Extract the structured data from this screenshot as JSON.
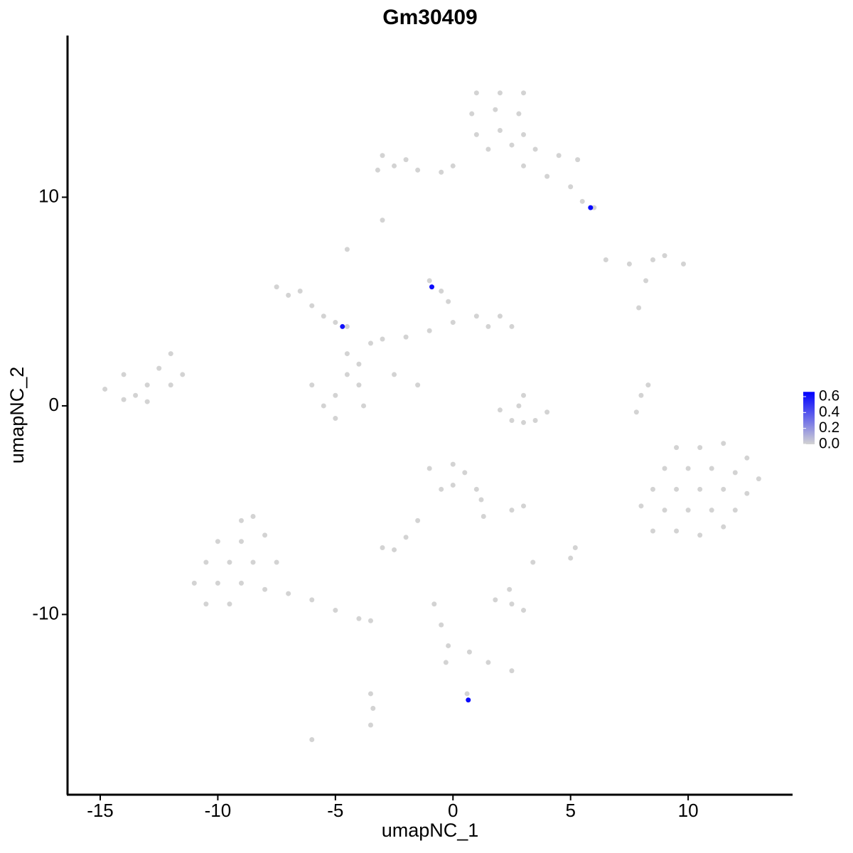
{
  "chart_data": {
    "type": "scatter",
    "title": "Gm30409",
    "x_label": "umapNC_1",
    "y_label": "umapNC_2",
    "xlim": [
      -16.39,
      14.44
    ],
    "ylim": [
      -18.64,
      17.75
    ],
    "xticks": [
      -15,
      -10,
      -5,
      0,
      5,
      10
    ],
    "yticks": [
      -10,
      0,
      10
    ],
    "low_color": "#d3d3d3",
    "high_color": "#0000ff",
    "color_range": [
      0,
      0.66
    ],
    "colorbar_ticks": [
      {
        "value": 0,
        "label": "0.0"
      },
      {
        "value": 0.2,
        "label": "0.2"
      },
      {
        "value": 0.4,
        "label": "0.4"
      },
      {
        "value": 0.6,
        "label": "0.6"
      }
    ],
    "points": [
      [
        1,
        15,
        0
      ],
      [
        2,
        15,
        0
      ],
      [
        3,
        15,
        0
      ],
      [
        0.8,
        14,
        0
      ],
      [
        1.8,
        14.2,
        0
      ],
      [
        2.8,
        14,
        0
      ],
      [
        1,
        13,
        0
      ],
      [
        2,
        13.2,
        0
      ],
      [
        3,
        13,
        0
      ],
      [
        1.5,
        12.3,
        0
      ],
      [
        2.5,
        12.5,
        0
      ],
      [
        3.5,
        12.3,
        0
      ],
      [
        4.5,
        12,
        0
      ],
      [
        5.3,
        11.8,
        0
      ],
      [
        4,
        11,
        0
      ],
      [
        5,
        10.5,
        0
      ],
      [
        5.5,
        9.8,
        0
      ],
      [
        6,
        9.5,
        0
      ],
      [
        3,
        11.5,
        0
      ],
      [
        0,
        11.5,
        0
      ],
      [
        -0.5,
        11.2,
        0
      ],
      [
        -3,
        12,
        0
      ],
      [
        -2.5,
        11.5,
        0
      ],
      [
        -2,
        11.8,
        0
      ],
      [
        -1.5,
        11.3,
        0
      ],
      [
        -3.2,
        11.3,
        0
      ],
      [
        -3,
        8.9,
        0
      ],
      [
        -4.5,
        7.5,
        0
      ],
      [
        6.5,
        7,
        0
      ],
      [
        7.5,
        6.8,
        0
      ],
      [
        8.5,
        7,
        0
      ],
      [
        9,
        7.2,
        0
      ],
      [
        9.8,
        6.8,
        0
      ],
      [
        8.2,
        6,
        0
      ],
      [
        7.9,
        4.7,
        0
      ],
      [
        -7.5,
        5.7,
        0
      ],
      [
        -7,
        5.3,
        0
      ],
      [
        -6.5,
        5.5,
        0
      ],
      [
        -6,
        4.8,
        0
      ],
      [
        -5.5,
        4.3,
        0
      ],
      [
        -5,
        4,
        0
      ],
      [
        -4.5,
        3.8,
        0
      ],
      [
        -6,
        1,
        0
      ],
      [
        -5.5,
        0,
        0
      ],
      [
        -5,
        0.5,
        0
      ],
      [
        -4.5,
        1.5,
        0
      ],
      [
        -4,
        1,
        0
      ],
      [
        -3.8,
        0,
        0
      ],
      [
        -5,
        -0.6,
        0
      ],
      [
        -4.5,
        2.5,
        0
      ],
      [
        -4,
        2,
        0
      ],
      [
        -3.5,
        3,
        0
      ],
      [
        -3,
        3.2,
        0
      ],
      [
        -2,
        3.3,
        0
      ],
      [
        -1,
        3.6,
        0
      ],
      [
        0,
        4,
        0
      ],
      [
        1,
        4.3,
        0
      ],
      [
        2,
        4.3,
        0
      ],
      [
        2.5,
        3.8,
        0
      ],
      [
        1.5,
        3.8,
        0
      ],
      [
        -0.5,
        5.5,
        0
      ],
      [
        -1,
        6,
        0
      ],
      [
        -0.2,
        5,
        0
      ],
      [
        -2.5,
        1.5,
        0
      ],
      [
        -1.5,
        1,
        0
      ],
      [
        -14.8,
        0.8,
        0
      ],
      [
        -14,
        1.5,
        0
      ],
      [
        -13.5,
        0.5,
        0
      ],
      [
        -13,
        1,
        0
      ],
      [
        -12.5,
        1.8,
        0
      ],
      [
        -12,
        1,
        0
      ],
      [
        -11.5,
        1.5,
        0
      ],
      [
        -13,
        0.2,
        0
      ],
      [
        -14,
        0.3,
        0
      ],
      [
        -12,
        2.5,
        0
      ],
      [
        2,
        -0.2,
        0
      ],
      [
        2.5,
        -0.7,
        0
      ],
      [
        3,
        -0.8,
        0
      ],
      [
        3.5,
        -0.7,
        0
      ],
      [
        4,
        -0.3,
        0
      ],
      [
        3,
        0.5,
        0
      ],
      [
        2.8,
        0,
        0
      ],
      [
        8,
        0.5,
        0
      ],
      [
        7.8,
        -0.3,
        0
      ],
      [
        8.3,
        1,
        0
      ],
      [
        9.5,
        -2,
        0
      ],
      [
        10.5,
        -2,
        0
      ],
      [
        11.5,
        -1.8,
        0
      ],
      [
        12.5,
        -2.5,
        0
      ],
      [
        9,
        -3,
        0
      ],
      [
        10,
        -3,
        0
      ],
      [
        11,
        -3,
        0
      ],
      [
        12,
        -3.2,
        0
      ],
      [
        13,
        -3.5,
        0
      ],
      [
        8.5,
        -4,
        0
      ],
      [
        9.5,
        -4,
        0
      ],
      [
        10.5,
        -4,
        0
      ],
      [
        11.5,
        -4,
        0
      ],
      [
        12.5,
        -4.2,
        0
      ],
      [
        9,
        -5,
        0
      ],
      [
        10,
        -5,
        0
      ],
      [
        11,
        -5,
        0
      ],
      [
        12,
        -5,
        0
      ],
      [
        8.5,
        -6,
        0
      ],
      [
        9.5,
        -6,
        0
      ],
      [
        10.5,
        -6.2,
        0
      ],
      [
        11.5,
        -5.8,
        0
      ],
      [
        8,
        -4.8,
        0
      ],
      [
        -1,
        -3,
        0
      ],
      [
        0,
        -2.8,
        0
      ],
      [
        0.5,
        -3.2,
        0
      ],
      [
        1,
        -4,
        0
      ],
      [
        1.2,
        -4.5,
        0
      ],
      [
        -0.5,
        -4,
        0
      ],
      [
        0,
        -3.8,
        0
      ],
      [
        1.3,
        -5.3,
        0
      ],
      [
        -1.5,
        -5.5,
        0
      ],
      [
        -2,
        -6.3,
        0
      ],
      [
        -2.5,
        -6.9,
        0
      ],
      [
        -3,
        -6.8,
        0
      ],
      [
        2.5,
        -5,
        0
      ],
      [
        3,
        -4.8,
        0
      ],
      [
        -9,
        -5.5,
        0
      ],
      [
        -8.5,
        -5.3,
        0
      ],
      [
        -10,
        -6.5,
        0
      ],
      [
        -9,
        -6.5,
        0
      ],
      [
        -8,
        -6.2,
        0
      ],
      [
        -10.5,
        -7.5,
        0
      ],
      [
        -9.5,
        -7.5,
        0
      ],
      [
        -8.5,
        -7.5,
        0
      ],
      [
        -7.5,
        -7.5,
        0
      ],
      [
        -11,
        -8.5,
        0
      ],
      [
        -10,
        -8.5,
        0
      ],
      [
        -9,
        -8.5,
        0
      ],
      [
        -8,
        -8.8,
        0
      ],
      [
        -7,
        -9,
        0
      ],
      [
        -6,
        -9.3,
        0
      ],
      [
        -5,
        -9.8,
        0
      ],
      [
        -4,
        -10.2,
        0
      ],
      [
        -9.5,
        -9.5,
        0
      ],
      [
        -10.5,
        -9.5,
        0
      ],
      [
        -3.5,
        -10.3,
        0
      ],
      [
        -0.8,
        -9.5,
        0
      ],
      [
        -0.5,
        -10.5,
        0
      ],
      [
        -0.2,
        -11.5,
        0
      ],
      [
        -0.3,
        -12.3,
        0
      ],
      [
        0.7,
        -11.8,
        0
      ],
      [
        1.5,
        -12.3,
        0
      ],
      [
        2.5,
        -12.7,
        0
      ],
      [
        1.8,
        -9.3,
        0
      ],
      [
        2.5,
        -9.5,
        0
      ],
      [
        3,
        -9.8,
        0
      ],
      [
        2.4,
        -8.8,
        0
      ],
      [
        5,
        -7.3,
        0
      ],
      [
        3.4,
        -7.5,
        0
      ],
      [
        5.2,
        -6.8,
        0
      ],
      [
        -3.5,
        -13.8,
        0
      ],
      [
        -3.4,
        -14.5,
        0
      ],
      [
        -3.5,
        -15.3,
        0
      ],
      [
        -6,
        -16,
        0
      ],
      [
        0.6,
        -13.8,
        0
      ],
      [
        5.85,
        9.5,
        0.64
      ],
      [
        -0.9,
        5.7,
        0.62
      ],
      [
        -4.7,
        3.8,
        0.6
      ],
      [
        0.65,
        -14.1,
        0.63
      ]
    ]
  }
}
